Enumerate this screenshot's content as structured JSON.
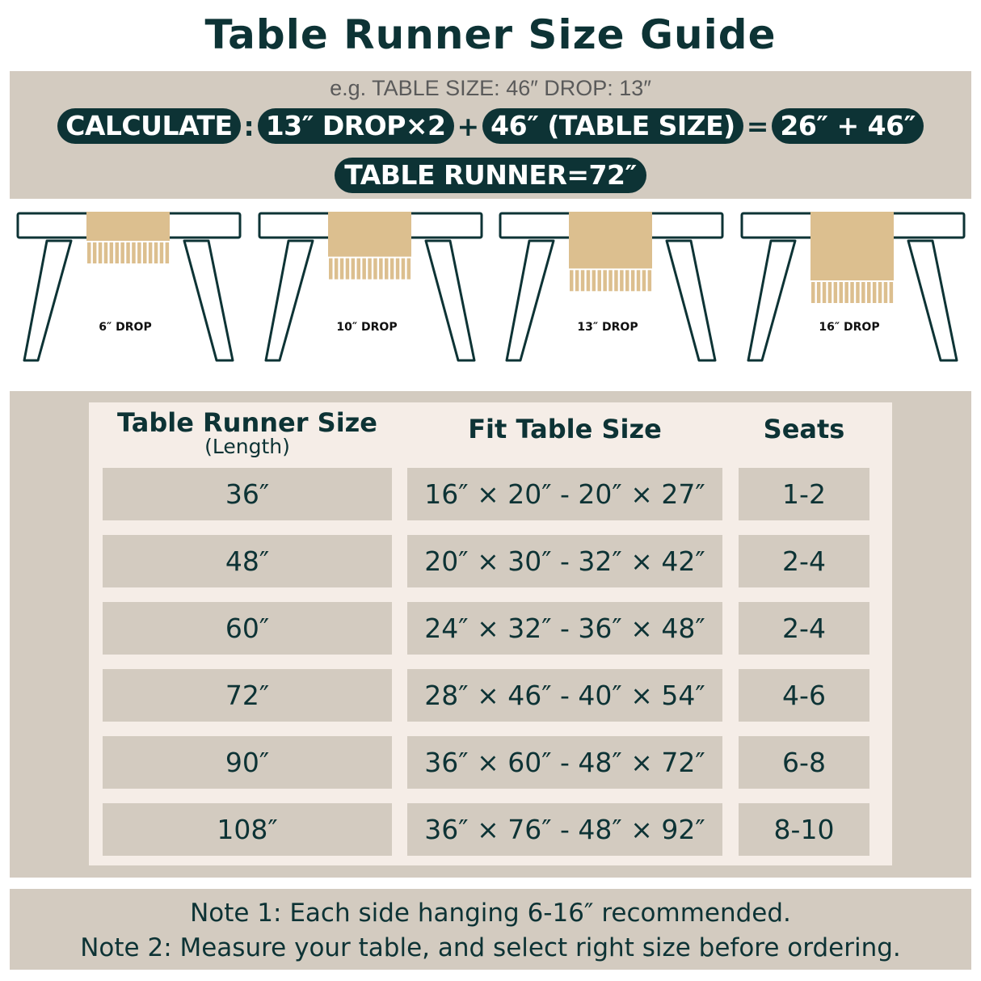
{
  "title": "Table Runner Size Guide",
  "calculator": {
    "example": "e.g. TABLE SIZE: 46″   DROP: 13″",
    "calculate_label": "CALCULATE",
    "colon": ":",
    "drop_term": "13″ DROP×2",
    "plus": "+",
    "table_term": "46″ (TABLE SIZE)",
    "equals": "=",
    "sum_term": "26″ + 46″",
    "result": "TABLE RUNNER=72″"
  },
  "illustrations": [
    {
      "drop": 6,
      "label": "6″  DROP"
    },
    {
      "drop": 10,
      "label": "10″  DROP"
    },
    {
      "drop": 13,
      "label": "13″  DROP"
    },
    {
      "drop": 16,
      "label": "16″  DROP"
    }
  ],
  "colors": {
    "dark": "#0d3335",
    "runner": "#dcbf8f",
    "band": "#d3cbc0",
    "panel": "#f5ede7"
  },
  "table": {
    "headers": {
      "size": "Table Runner Size",
      "size_sub": "(Length)",
      "fit": "Fit Table Size",
      "seats": "Seats"
    },
    "rows": [
      {
        "size": "36″",
        "fit": "16″ × 20″ - 20″ × 27″",
        "seats": "1-2"
      },
      {
        "size": "48″",
        "fit": "20″ × 30″ - 32″ × 42″",
        "seats": "2-4"
      },
      {
        "size": "60″",
        "fit": "24″ × 32″ - 36″ × 48″",
        "seats": "2-4"
      },
      {
        "size": "72″",
        "fit": "28″ × 46″ - 40″ × 54″",
        "seats": "4-6"
      },
      {
        "size": "90″",
        "fit": "36″ × 60″ - 48″ × 72″",
        "seats": "6-8"
      },
      {
        "size": "108″",
        "fit": "36″ × 76″ - 48″ × 92″",
        "seats": "8-10"
      }
    ]
  },
  "notes": [
    "Note 1: Each side hanging 6-16″  recommended.",
    "Note 2: Measure your table, and select right size before ordering."
  ]
}
